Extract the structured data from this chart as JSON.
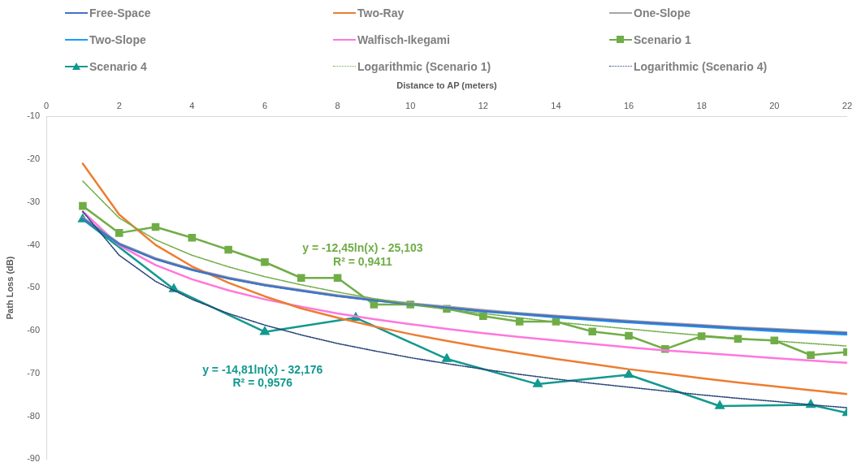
{
  "chart_data": {
    "type": "line",
    "xlabel": "Distance to AP (meters)",
    "ylabel": "Path Loss (dB)",
    "x": [
      1,
      2,
      3,
      4,
      5,
      6,
      7,
      8,
      9,
      10,
      11,
      12,
      13,
      14,
      15,
      16,
      17,
      18,
      19,
      20,
      21,
      22
    ],
    "xlim": [
      0,
      22
    ],
    "xticks": [
      0,
      2,
      4,
      6,
      8,
      10,
      12,
      14,
      16,
      18,
      20,
      22
    ],
    "ylim": [
      -90,
      -10
    ],
    "yticks": [
      -90,
      -80,
      -70,
      -60,
      -50,
      -40,
      -30,
      -20,
      -10
    ],
    "grid": false,
    "legend": "top",
    "marker": "none",
    "line_style": "solid",
    "series": [
      {
        "name": "Free-Space",
        "color": "#4472c4",
        "values": [
          -33.8,
          -39.8,
          -43.3,
          -45.8,
          -47.8,
          -49.4,
          -50.7,
          -51.9,
          -52.9,
          -53.8,
          -54.6,
          -55.4,
          -56.1,
          -56.7,
          -57.3,
          -57.9,
          -58.4,
          -58.9,
          -59.4,
          -59.8,
          -60.2,
          -60.6
        ]
      },
      {
        "name": "Two-Ray",
        "color": "#ed7d31",
        "values": [
          -21.0,
          -32.9,
          -40.0,
          -45.0,
          -48.8,
          -52.0,
          -54.8,
          -57.0,
          -59.0,
          -60.8,
          -62.4,
          -63.9,
          -65.3,
          -66.6,
          -67.8,
          -69.0,
          -70.0,
          -71.1,
          -72.1,
          -73.0,
          -73.9,
          -74.8
        ]
      },
      {
        "name": "One-Slope",
        "color": "#a5a5a5",
        "values": [
          -33.6,
          -39.6,
          -43.1,
          -45.6,
          -47.6,
          -49.2,
          -50.5,
          -51.7,
          -52.7,
          -53.6,
          -54.4,
          -55.2,
          -55.9,
          -56.5,
          -57.1,
          -57.7,
          -58.2,
          -58.7,
          -59.2,
          -59.6,
          -60.0,
          -60.4
        ]
      },
      {
        "name": "Two-Slope",
        "color": "#1a9bfc",
        "values": [
          -33.8,
          -39.8,
          -43.3,
          -45.8,
          -47.8,
          -49.4,
          -50.7,
          -51.9,
          -52.9,
          -53.8,
          -54.7,
          -55.5,
          -56.2,
          -56.9,
          -57.5,
          -58.1,
          -58.6,
          -59.1,
          -59.6,
          -60.1,
          -60.5,
          -60.9
        ]
      },
      {
        "name": "Walfisch-Ikegami",
        "color": "#ff77dd",
        "values": [
          -32.2,
          -40.1,
          -44.7,
          -48.0,
          -50.6,
          -52.7,
          -54.4,
          -56.0,
          -57.3,
          -58.5,
          -59.6,
          -60.6,
          -61.5,
          -62.3,
          -63.1,
          -63.9,
          -64.6,
          -65.2,
          -65.8,
          -66.4,
          -67.0,
          -67.5
        ]
      },
      {
        "name": "Scenario 1",
        "color": "#70ad47",
        "marker": "square",
        "values": [
          -30.9,
          -37.2,
          -35.8,
          -38.3,
          -41.1,
          -44.0,
          -47.7,
          -47.7,
          -53.9,
          -53.9,
          -54.9,
          -56.6,
          -57.9,
          -57.9,
          -60.2,
          -61.2,
          -64.3,
          -61.3,
          -61.9,
          -62.3,
          -65.7,
          -65.0
        ]
      },
      {
        "name": "Scenario 4",
        "color": "#12998f",
        "marker": "triangle",
        "x": [
          1,
          3.5,
          6,
          8.5,
          11,
          13.5,
          16,
          18.5,
          21,
          22
        ],
        "values": [
          -34.0,
          -50.3,
          -60.3,
          -57.0,
          -66.6,
          -72.5,
          -70.3,
          -77.6,
          -77.3,
          -79.2
        ]
      },
      {
        "name": "Logarithmic (Scenario 1)",
        "color": "#70ad47",
        "line_style": "dotted",
        "values": [
          -25.1,
          -33.7,
          -38.8,
          -42.4,
          -45.1,
          -47.4,
          -49.3,
          -51.0,
          -52.5,
          -53.8,
          -55.0,
          -56.0,
          -57.0,
          -58.0,
          -58.8,
          -59.6,
          -60.4,
          -61.1,
          -61.8,
          -62.4,
          -63.0,
          -63.6
        ]
      },
      {
        "name": "Logarithmic (Scenario 4)",
        "color": "#264478",
        "line_style": "dotted",
        "values": [
          -32.2,
          -42.4,
          -48.5,
          -52.7,
          -56.0,
          -58.7,
          -61.0,
          -63.0,
          -64.7,
          -66.3,
          -67.7,
          -69.0,
          -70.2,
          -71.3,
          -72.3,
          -73.2,
          -74.1,
          -75.0,
          -75.8,
          -76.5,
          -77.3,
          -78.0
        ]
      }
    ],
    "annotations": [
      "y = -12,45ln(x) - 25,103",
      "R² = 0,9411",
      "y = -14,81ln(x) - 32,176",
      "R² = 0,9576"
    ]
  }
}
